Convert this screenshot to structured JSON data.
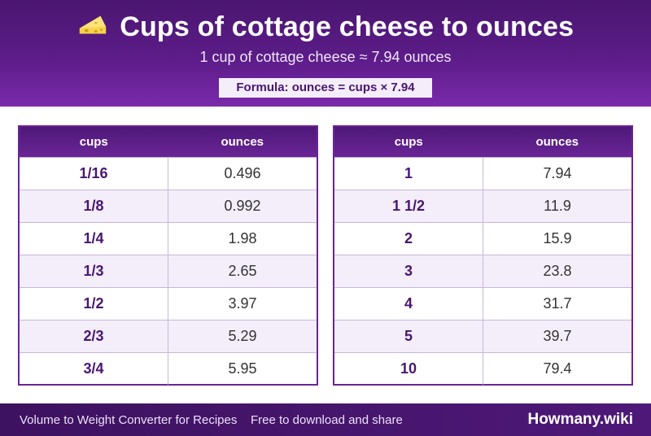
{
  "header": {
    "title": "Cups of cottage cheese to ounces",
    "icon": "cheese-icon",
    "subtitle": "1 cup of cottage cheese ≈ 7.94 ounces",
    "formula": "Formula: ounces = cups × 7.94"
  },
  "tables": [
    {
      "headers": [
        "cups",
        "ounces"
      ],
      "rows": [
        {
          "cups": "1/16",
          "ounces": "0.496"
        },
        {
          "cups": "1/8",
          "ounces": "0.992"
        },
        {
          "cups": "1/4",
          "ounces": "1.98"
        },
        {
          "cups": "1/3",
          "ounces": "2.65"
        },
        {
          "cups": "1/2",
          "ounces": "3.97"
        },
        {
          "cups": "2/3",
          "ounces": "5.29"
        },
        {
          "cups": "3/4",
          "ounces": "5.95"
        }
      ]
    },
    {
      "headers": [
        "cups",
        "ounces"
      ],
      "rows": [
        {
          "cups": "1",
          "ounces": "7.94"
        },
        {
          "cups": "1 1/2",
          "ounces": "11.9"
        },
        {
          "cups": "2",
          "ounces": "15.9"
        },
        {
          "cups": "3",
          "ounces": "23.8"
        },
        {
          "cups": "4",
          "ounces": "31.7"
        },
        {
          "cups": "5",
          "ounces": "39.7"
        },
        {
          "cups": "10",
          "ounces": "79.4"
        }
      ]
    }
  ],
  "footer": {
    "left_text": "Volume to Weight Converter for Recipes",
    "mid_text": "Free to download and share",
    "brand": "Howmany.wiki"
  },
  "colors": {
    "header_bg": "#5c1c88",
    "accent": "#4a1670",
    "row_alt": "#f3eefa"
  }
}
